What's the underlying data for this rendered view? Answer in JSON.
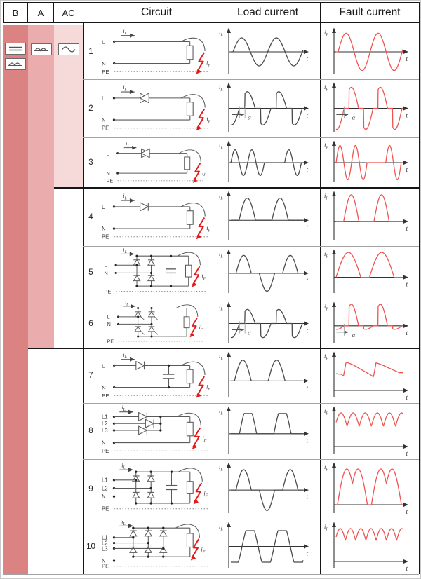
{
  "header": {
    "b": "B",
    "a": "A",
    "ac": "AC",
    "circuit": "Circuit",
    "load": "Load current",
    "fault": "Fault current"
  },
  "type_bands": [
    {
      "label": "B",
      "rows_covered": "1-10",
      "color": "#db8383",
      "symbols": [
        "smooth-dc",
        "pulsating-dc"
      ]
    },
    {
      "label": "A",
      "rows_covered": "1-6",
      "color": "#eaacac",
      "symbols": [
        "pulsating-dc"
      ]
    },
    {
      "label": "AC",
      "rows_covered": "1-3",
      "color": "#f6d9d9",
      "symbols": [
        "ac-sine"
      ]
    }
  ],
  "labels": {
    "i": "i",
    "L": "L",
    "F": "F",
    "t": "t",
    "alpha": "α"
  },
  "palette": {
    "band_b": "#db8383",
    "band_a": "#eaacac",
    "band_ac": "#f6d9d9",
    "load_wave": "#4a4a4a",
    "fault_wave": "#ef5350",
    "bolt_red": "#e31a1a",
    "circuit_line": "#5a5a5a"
  },
  "rows": [
    {
      "num": "1",
      "circuit": "direct",
      "terminals": [
        "L",
        "N",
        "PE"
      ],
      "load": {
        "type": "sine"
      },
      "fault": {
        "type": "sine"
      }
    },
    {
      "num": "2",
      "circuit": "triac",
      "terminals": [
        "L",
        "N",
        "PE"
      ],
      "load": {
        "type": "phase_cut",
        "alpha": true
      },
      "fault": {
        "type": "phase_cut",
        "alpha": true
      }
    },
    {
      "num": "3",
      "circuit": "triac",
      "terminals": [
        "L",
        "N",
        "PE"
      ],
      "load": {
        "type": "burst"
      },
      "fault": {
        "type": "burst"
      }
    },
    {
      "num": "4",
      "circuit": "diode",
      "terminals": [
        "L",
        "N",
        "PE"
      ],
      "load": {
        "type": "half_wave"
      },
      "fault": {
        "type": "half_wave"
      }
    },
    {
      "num": "5",
      "circuit": "bridge_cap",
      "terminals": [
        "L",
        "N",
        "PE"
      ],
      "load": {
        "type": "cap_pulses"
      },
      "fault": {
        "type": "full_rect"
      }
    },
    {
      "num": "6",
      "circuit": "bridge_scr",
      "terminals": [
        "L",
        "N",
        "PE"
      ],
      "load": {
        "type": "phase_cut",
        "alpha": true
      },
      "fault": {
        "type": "phase_cut_rect",
        "alpha": true
      }
    },
    {
      "num": "7",
      "circuit": "diode_cap",
      "terminals": [
        "L",
        "N",
        "PE"
      ],
      "load": {
        "type": "pulses_pos"
      },
      "fault": {
        "type": "dc_ripple"
      }
    },
    {
      "num": "8",
      "circuit": "three_phase_half",
      "terminals": [
        "L1",
        "L2",
        "L3",
        "N",
        "PE"
      ],
      "load": {
        "type": "half_wave_flat"
      },
      "fault": {
        "type": "ripple_55"
      }
    },
    {
      "num": "9",
      "circuit": "bridge_cap_2ph",
      "terminals": [
        "L1",
        "L2",
        "N",
        "PE"
      ],
      "load": {
        "type": "cap_pulses"
      },
      "fault": {
        "type": "double_humps"
      }
    },
    {
      "num": "10",
      "circuit": "bridge_3ph",
      "terminals": [
        "L1",
        "L2",
        "L3",
        "N",
        "PE"
      ],
      "load": {
        "type": "flat_alt"
      },
      "fault": {
        "type": "ripple_65"
      }
    }
  ]
}
